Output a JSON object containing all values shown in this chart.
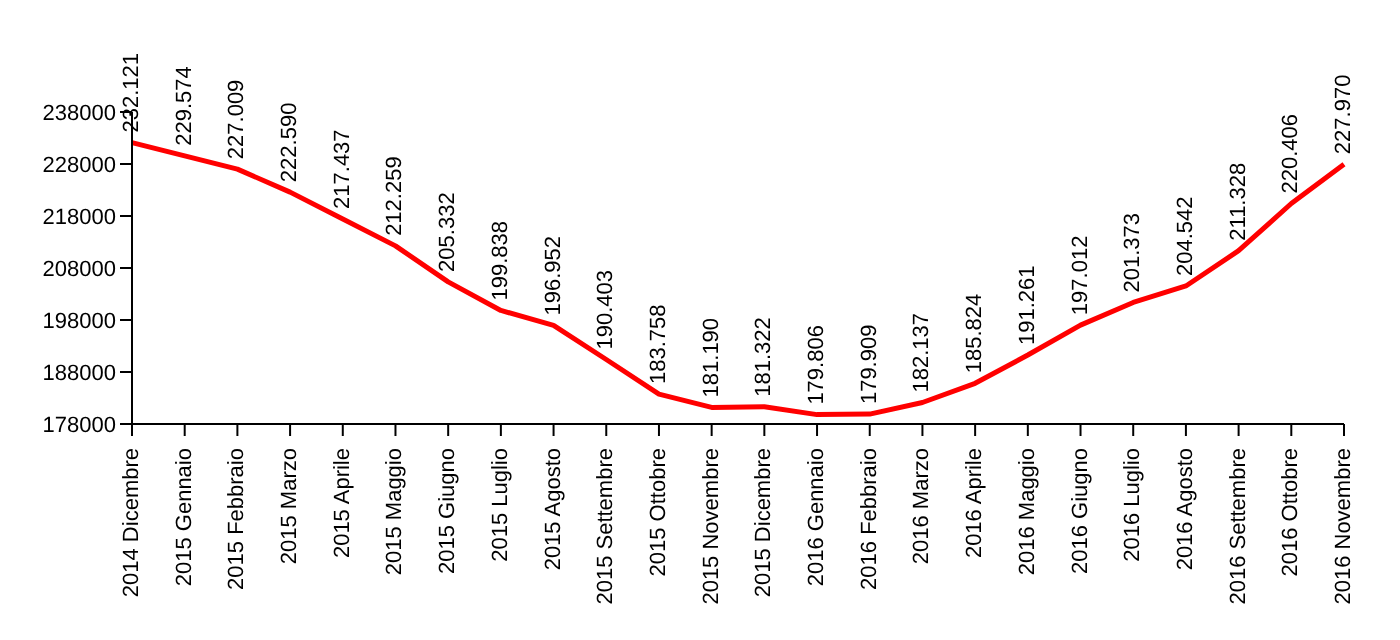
{
  "chart_data": {
    "type": "line",
    "categories": [
      "2014 Dicembre",
      "2015 Gennaio",
      "2015 Febbraio",
      "2015 Marzo",
      "2015 Aprile",
      "2015 Maggio",
      "2015 Giugno",
      "2015 Luglio",
      "2015 Agosto",
      "2015 Settembre",
      "2015 Ottobre",
      "2015 Novembre",
      "2015 Dicembre",
      "2016 Gennaio",
      "2016 Febbraio",
      "2016 Marzo",
      "2016 Aprile",
      "2016 Maggio",
      "2016 Giugno",
      "2016 Luglio",
      "2016 Agosto",
      "2016 Settembre",
      "2016 Ottobre",
      "2016 Novembre"
    ],
    "series": [
      {
        "color": "#ff0000",
        "values": [
          232121,
          229574,
          227009,
          222590,
          217437,
          212259,
          205332,
          199838,
          196952,
          190403,
          183758,
          181190,
          181322,
          179806,
          179909,
          182137,
          185824,
          191261,
          197012,
          201373,
          204542,
          211328,
          220406,
          227970
        ],
        "value_labels": [
          "232.121",
          "229.574",
          "227.009",
          "222.590",
          "217.437",
          "212.259",
          "205.332",
          "199.838",
          "196.952",
          "190.403",
          "183.758",
          "181.190",
          "181.322",
          "179.806",
          "179.909",
          "182.137",
          "185.824",
          "191.261",
          "197.012",
          "201.373",
          "204.542",
          "211.328",
          "220.406",
          "227.970"
        ]
      }
    ],
    "ylim": [
      178000,
      238000
    ],
    "yticks": [
      178000,
      188000,
      198000,
      208000,
      218000,
      228000,
      238000
    ],
    "marker": "none",
    "line_style": "solid"
  }
}
